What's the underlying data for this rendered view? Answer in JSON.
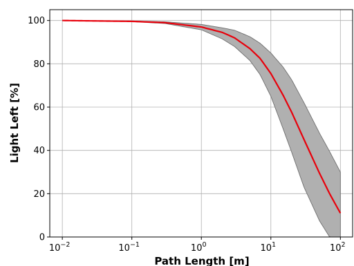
{
  "chart_data": {
    "type": "line",
    "xlabel": "Path Length [m]",
    "ylabel": "Light Left [%]",
    "xscale": "log",
    "xlim": [
      0.0066,
      150
    ],
    "ylim": [
      0,
      105
    ],
    "grid": true,
    "x_ticks": [
      {
        "base": "10",
        "exp": "−2",
        "value": 0.01
      },
      {
        "base": "10",
        "exp": "−1",
        "value": 0.1
      },
      {
        "base": "10",
        "exp": "0",
        "value": 1
      },
      {
        "base": "10",
        "exp": "1",
        "value": 10
      },
      {
        "base": "10",
        "exp": "2",
        "value": 100
      }
    ],
    "y_ticks": [
      "0",
      "20",
      "40",
      "60",
      "80",
      "100"
    ],
    "x": [
      0.01,
      0.1,
      0.3,
      1,
      2,
      3,
      5,
      7,
      10,
      15,
      20,
      30,
      50,
      70,
      100
    ],
    "series": [
      {
        "role": "mean",
        "color": "#e8000b",
        "values": [
          100,
          99.6,
          99,
          97,
          94.5,
          92,
          87,
          82.5,
          75.5,
          65.5,
          57.5,
          45,
          29.5,
          20,
          11
        ]
      }
    ],
    "band": {
      "color": "#b0b0b0",
      "edge_color": "#6e6e6e",
      "lower": [
        100,
        99.5,
        98.6,
        95.7,
        91.5,
        88,
        81.5,
        75,
        65,
        50,
        39,
        23,
        7.5,
        0,
        0
      ],
      "upper": [
        100,
        99.8,
        99.4,
        98.2,
        96.6,
        95.5,
        92.5,
        89.5,
        85,
        78.5,
        72.5,
        62,
        48,
        39.5,
        30
      ]
    }
  }
}
